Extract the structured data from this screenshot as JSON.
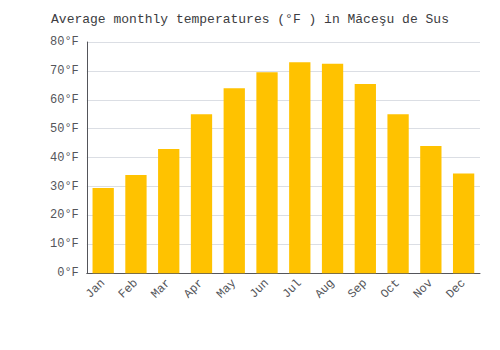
{
  "chart_data": {
    "type": "bar",
    "title": "Average monthly temperatures (°F ) in Măceşu de Sus",
    "categories": [
      "Jan",
      "Feb",
      "Mar",
      "Apr",
      "May",
      "Jun",
      "Jul",
      "Aug",
      "Sep",
      "Oct",
      "Nov",
      "Dec"
    ],
    "values": [
      29.5,
      34.0,
      43.0,
      55.0,
      64.0,
      69.5,
      73.0,
      72.5,
      65.5,
      55.0,
      44.0,
      34.5
    ],
    "color": "#FFC200",
    "ylim": [
      0,
      80
    ],
    "yticks": [
      {
        "value": 0,
        "label": "0°F"
      },
      {
        "value": 10,
        "label": "10°F"
      },
      {
        "value": 20,
        "label": "20°F"
      },
      {
        "value": 30,
        "label": "30°F"
      },
      {
        "value": 40,
        "label": "40°F"
      },
      {
        "value": 50,
        "label": "50°F"
      },
      {
        "value": 60,
        "label": "60°F"
      },
      {
        "value": 70,
        "label": "70°F"
      },
      {
        "value": 80,
        "label": "80°F"
      }
    ],
    "grid": true
  }
}
